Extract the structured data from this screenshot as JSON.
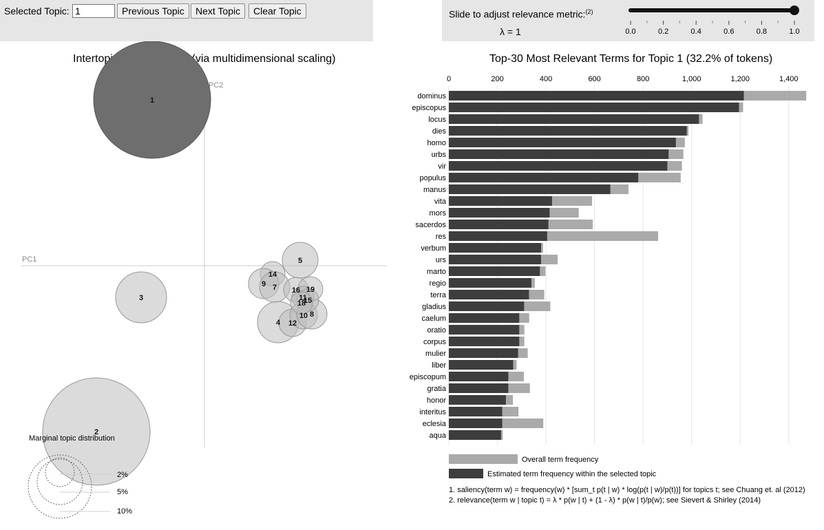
{
  "controls": {
    "selected_topic_label": "Selected Topic:",
    "selected_topic_value": "1",
    "previous_label": "Previous Topic",
    "next_label": "Next Topic",
    "clear_label": "Clear Topic",
    "slider_label": "Slide to adjust relevance metric:",
    "slider_footnote": "(2)",
    "lambda_text": "λ = 1",
    "lambda_value": 1.0,
    "slider_ticks": [
      "0.0",
      "0.2",
      "0.4",
      "0.6",
      "0.8",
      "1.0"
    ]
  },
  "map": {
    "title": "Intertopic Distance Map (via multidimensional scaling)",
    "pc1_label": "PC1",
    "pc2_label": "PC2",
    "marginal_title": "Marginal topic distribution",
    "legend": [
      "2%",
      "5%",
      "10%"
    ],
    "topics": [
      {
        "label": "1",
        "selected": true
      },
      {
        "label": "2",
        "selected": false
      },
      {
        "label": "3",
        "selected": false
      },
      {
        "label": "4",
        "selected": false
      },
      {
        "label": "5",
        "selected": false
      },
      {
        "label": "7",
        "selected": false
      },
      {
        "label": "8",
        "selected": false
      },
      {
        "label": "9",
        "selected": false
      },
      {
        "label": "10",
        "selected": false
      },
      {
        "label": "12",
        "selected": false
      },
      {
        "label": "14",
        "selected": false
      },
      {
        "label": "16",
        "selected": false
      },
      {
        "label": "19",
        "selected": false
      },
      {
        "label": "11",
        "selected": false
      },
      {
        "label": "15",
        "selected": false
      },
      {
        "label": "18",
        "selected": false
      }
    ]
  },
  "bar_title": "Top-30 Most Relevant Terms for Topic 1 (32.2% of tokens)",
  "chart_data": {
    "type": "bar",
    "orientation": "horizontal",
    "title": "Top-30 Most Relevant Terms for Topic 1 (32.2% of tokens)",
    "xlim": [
      0,
      1480
    ],
    "x_ticks": [
      0,
      200,
      400,
      600,
      800,
      1000,
      1200,
      1400
    ],
    "x_tick_labels": [
      "0",
      "200",
      "400",
      "600",
      "800",
      "1,000",
      "1,200",
      "1,400"
    ],
    "categories": [
      "dominus",
      "episcopus",
      "locus",
      "dies",
      "homo",
      "urbs",
      "vir",
      "populus",
      "manus",
      "vita",
      "mors",
      "sacerdos",
      "res",
      "verbum",
      "urs",
      "marto",
      "regio",
      "terra",
      "gladius",
      "caelum",
      "oratio",
      "corpus",
      "mulier",
      "liber",
      "episcopum",
      "gratia",
      "honor",
      "interitus",
      "eclesia",
      "aqua"
    ],
    "series": [
      {
        "name": "Overall term frequency",
        "color": "#aaaaaa",
        "values": [
          1472,
          1212,
          1045,
          987,
          972,
          966,
          960,
          955,
          740,
          590,
          535,
          593,
          862,
          388,
          448,
          398,
          354,
          393,
          418,
          331,
          311,
          311,
          325,
          279,
          309,
          334,
          264,
          287,
          389,
          222
        ]
      },
      {
        "name": "Estimated term frequency within the selected topic",
        "color": "#3d3d3d",
        "values": [
          1215,
          1195,
          1030,
          980,
          935,
          905,
          900,
          780,
          665,
          425,
          415,
          410,
          405,
          380,
          380,
          375,
          340,
          330,
          310,
          290,
          290,
          290,
          285,
          265,
          245,
          245,
          235,
          220,
          220,
          215
        ]
      }
    ],
    "legend_placement": "bottom-left"
  },
  "footnotes": [
    "1. saliency(term w) = frequency(w) * [sum_t p(t | w) * log(p(t | w)/p(t))] for topics t; see Chuang et. al (2012)",
    "2. relevance(term w | topic t) = λ * p(w | t) + (1 - λ) * p(w | t)/p(w); see Sievert & Shirley (2014)"
  ]
}
